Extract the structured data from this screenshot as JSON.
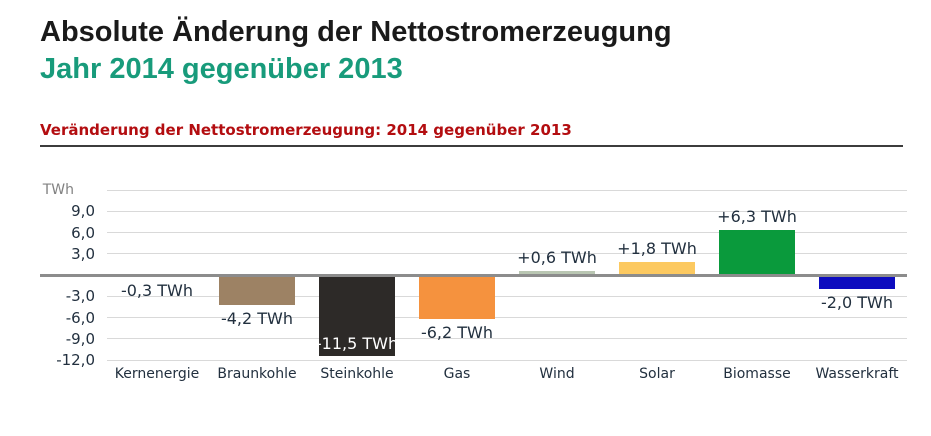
{
  "page": {
    "title": "Absolute Änderung der Nettostromerzeugung",
    "subtitle": "Jahr 2014 gegenüber 2013",
    "section_heading": "Veränderung der Nettostromerzeugung: 2014 gegenüber 2013"
  },
  "colors": {
    "title_text": "#1a1a1a",
    "subtitle_text": "#189b7b",
    "section_heading_text": "#b30d10",
    "heading_rule": "#3c3c3c",
    "axis_text": "#22303f",
    "unit_text": "#828282",
    "gridline": "#d9d9d9",
    "zero_line": "#8c8c8c",
    "inside_label_text": "#ffffff"
  },
  "chart_data": {
    "type": "bar",
    "title": "Veränderung der Nettostromerzeugung: 2014 gegenüber 2013",
    "xlabel": "",
    "ylabel": "TWh",
    "unit_label": "TWh",
    "categories": [
      "Kernenergie",
      "Braunkohle",
      "Steinkohle",
      "Gas",
      "Wind",
      "Solar",
      "Biomasse",
      "Wasserkraft"
    ],
    "values": [
      -0.3,
      -4.2,
      -11.5,
      -6.2,
      0.6,
      1.8,
      6.3,
      -2.0
    ],
    "value_labels": [
      "-0,3 TWh",
      "-4,2 TWh",
      "-11,5 TWh",
      "-6,2 TWh",
      "+0,6 TWh",
      "+1,8 TWh",
      "+6,3 TWh",
      "-2,0 TWh"
    ],
    "bar_colors": [
      "#b2292e",
      "#9d8264",
      "#2d2a28",
      "#f5923e",
      "#b9c6b2",
      "#fcc960",
      "#0a9a3c",
      "#0d0cbf"
    ],
    "value_label_placement": [
      "below",
      "below",
      "inside",
      "below",
      "above",
      "above",
      "above",
      "below"
    ],
    "ylim": [
      -12,
      12
    ],
    "gridline_values": [
      12,
      9,
      6,
      3,
      0,
      -3,
      -6,
      -9,
      -12
    ],
    "ytick_values": [
      9,
      6,
      3,
      -3,
      -6,
      -9,
      -12
    ],
    "ytick_labels": [
      "9,0",
      "6,0",
      "3,0",
      "-3,0",
      "-6,0",
      "-9,0",
      "-12,0"
    ],
    "grid": true,
    "legend": false
  }
}
